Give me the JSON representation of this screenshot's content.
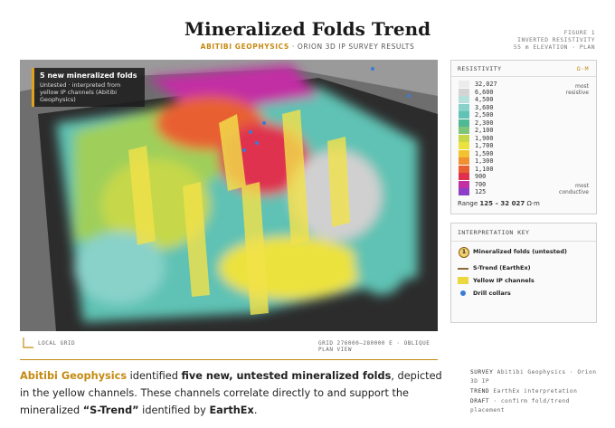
{
  "header": {
    "title": "Mineralized Folds Trend",
    "subtitle_brand": "ABITIBI GEOPHYSICS",
    "subtitle_rest": "· ORION 3D IP SURVEY RESULTS",
    "figure": [
      "FIGURE 1",
      "INVERTED RESISTIVITY",
      "55 m ELEVATION · PLAN"
    ]
  },
  "map": {
    "callout_title": "5 new mineralized folds",
    "callout_text": "Untested · interpreted from yellow IP channels (Abitibi Geophysics)",
    "axis_label": "LOCAL GRID",
    "grid_note": "GRID 276000–280000 E · OBLIQUE PLAN VIEW"
  },
  "resistivity": {
    "title": "RESISTIVITY",
    "unit": "Ω·M",
    "top_note": "most resistive",
    "bottom_note": "most conductive",
    "range_label": "Range",
    "range_value": "125 – 32 027",
    "range_unit": "Ω·m",
    "entries": [
      {
        "label": "32,027",
        "color": "#ececec"
      },
      {
        "label": "6,600",
        "color": "#d4d4d4"
      },
      {
        "label": "4,500",
        "color": "#b6e0dc"
      },
      {
        "label": "3,600",
        "color": "#88d2ca"
      },
      {
        "label": "2,500",
        "color": "#5fc2b4"
      },
      {
        "label": "2,300",
        "color": "#4fb894"
      },
      {
        "label": "2,100",
        "color": "#7ec47a"
      },
      {
        "label": "1,900",
        "color": "#c6d84a"
      },
      {
        "label": "1,700",
        "color": "#ece23e"
      },
      {
        "label": "1,500",
        "color": "#f2c230"
      },
      {
        "label": "1,300",
        "color": "#f09030"
      },
      {
        "label": "1,100",
        "color": "#e86030"
      },
      {
        "label": "900",
        "color": "#df3050"
      },
      {
        "label": "700",
        "color": "#c22ea4"
      },
      {
        "label": "125",
        "color": "#8c3ec8"
      }
    ]
  },
  "key": {
    "title": "INTERPRETATION KEY",
    "items": [
      "Mineralized folds (untested)",
      "S-Trend (EarthEx)",
      "Yellow IP channels",
      "Drill collars"
    ],
    "fold_icon": "1",
    "trend_note": "(EarthEx)"
  },
  "paragraph": {
    "parts": [
      "Abitibi Geophysics",
      " identified ",
      "five new, untested mineralized folds",
      ", depicted in the yellow channels. These channels correlate directly to and support the mineralized ",
      "“S-Trend”",
      " identified by ",
      "EarthEx",
      "."
    ]
  },
  "notes": [
    {
      "key": "SURVEY",
      "text": "Abitibi Geophysics · Orion 3D IP"
    },
    {
      "key": "TREND",
      "text": "EarthEx interpretation"
    },
    {
      "key": "DRAFT",
      "text": "· confirm fold/trend placement"
    }
  ]
}
